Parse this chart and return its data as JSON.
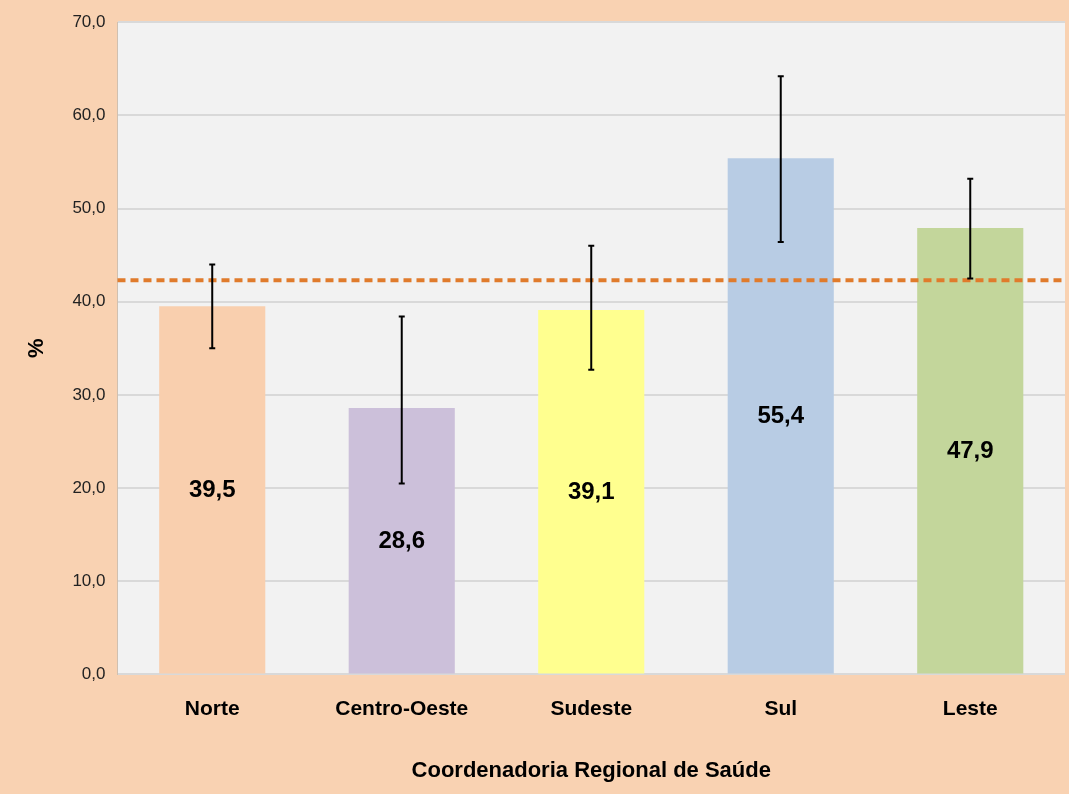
{
  "chart_data": {
    "type": "bar",
    "xlabel": "Coordenadoria Regional de Saúde",
    "ylabel": "%",
    "categories": [
      "Norte",
      "Centro-Oeste",
      "Sudeste",
      "Sul",
      "Leste"
    ],
    "values": [
      39.5,
      28.6,
      39.1,
      55.4,
      47.9
    ],
    "colors": [
      "#f9cfae",
      "#ccc0da",
      "#ffff8f",
      "#b8cce4",
      "#c3d69b"
    ],
    "errors": [
      [
        35.0,
        44.0
      ],
      [
        20.5,
        38.4
      ],
      [
        32.7,
        46.0
      ],
      [
        46.4,
        64.2
      ],
      [
        42.5,
        53.2
      ]
    ],
    "value_labels": [
      "39,5",
      "28,6",
      "39,1",
      "55,4",
      "47,9"
    ],
    "ylim": [
      0,
      70
    ],
    "yticks": [
      {
        "value": 0,
        "label": "0,0"
      },
      {
        "value": 10,
        "label": "10,0"
      },
      {
        "value": 20,
        "label": "20,0"
      },
      {
        "value": 30,
        "label": "30,0"
      },
      {
        "value": 40,
        "label": "40,0"
      },
      {
        "value": 50,
        "label": "50,0"
      },
      {
        "value": 60,
        "label": "60,0"
      },
      {
        "value": 70,
        "label": "70,0"
      }
    ],
    "ref_lines": [
      {
        "axis": "y",
        "value": 42.3,
        "label": null,
        "color": "#e07b2c",
        "line_style": "dashed"
      }
    ],
    "grid": "y",
    "legend": false
  }
}
